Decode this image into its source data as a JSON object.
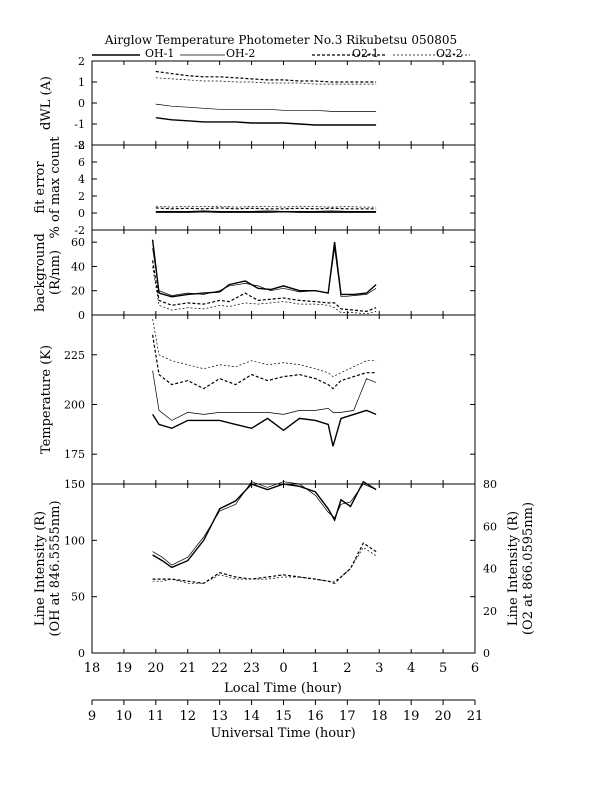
{
  "figure": {
    "title": "Airglow Temperature Photometer No.3   Rikubetsu   050805",
    "legend": [
      "OH-1",
      "OH-2",
      "O2-1",
      "O2-2"
    ],
    "local_time_label": "Local Time (hour)",
    "universal_time_label": "Universal Time (hour)",
    "local_ticks": [
      "18",
      "19",
      "20",
      "21",
      "22",
      "23",
      "0",
      "1",
      "2",
      "3",
      "4",
      "5",
      "6"
    ],
    "ut_ticks": [
      "9",
      "10",
      "11",
      "12",
      "13",
      "14",
      "15",
      "16",
      "17",
      "18",
      "19",
      "20",
      "21"
    ]
  },
  "chart_data": [
    {
      "type": "line",
      "ylabel": "dWL (A)",
      "ylim": [
        -2,
        2
      ],
      "yticks": [
        "2",
        "1",
        "0",
        "-1",
        "-2"
      ],
      "x": [
        20.0,
        20.5,
        21.0,
        21.5,
        22.0,
        22.5,
        23.0,
        23.5,
        0.0,
        0.5,
        1.0,
        1.5,
        2.0,
        2.5,
        2.9
      ],
      "series": [
        {
          "name": "OH-1",
          "values": [
            -0.7,
            -0.8,
            -0.85,
            -0.9,
            -0.9,
            -0.9,
            -0.95,
            -0.95,
            -0.95,
            -1.0,
            -1.05,
            -1.05,
            -1.05,
            -1.05,
            -1.05
          ]
        },
        {
          "name": "OH-2",
          "values": [
            -0.05,
            -0.15,
            -0.2,
            -0.25,
            -0.3,
            -0.3,
            -0.3,
            -0.3,
            -0.35,
            -0.35,
            -0.35,
            -0.4,
            -0.4,
            -0.4,
            -0.4
          ]
        },
        {
          "name": "O2-1",
          "values": [
            1.5,
            1.4,
            1.3,
            1.25,
            1.25,
            1.2,
            1.15,
            1.1,
            1.1,
            1.05,
            1.05,
            1.0,
            1.0,
            1.0,
            1.0
          ]
        },
        {
          "name": "O2-2",
          "values": [
            1.2,
            1.15,
            1.1,
            1.05,
            1.05,
            1.0,
            1.0,
            0.95,
            0.95,
            0.95,
            0.9,
            0.9,
            0.9,
            0.9,
            0.9
          ]
        }
      ]
    },
    {
      "type": "line",
      "ylabel": "fit error",
      "ylabel2": "% of max count",
      "ylim": [
        -2,
        8
      ],
      "yticks": [
        "8",
        "6",
        "4",
        "2",
        "0",
        "-2"
      ],
      "x": [
        20.0,
        20.5,
        21.0,
        21.5,
        22.0,
        22.5,
        23.0,
        23.5,
        0.0,
        0.5,
        1.0,
        1.5,
        2.0,
        2.5,
        2.9
      ],
      "series": [
        {
          "name": "OH-1",
          "values": [
            0.1,
            0.1,
            0.1,
            0.15,
            0.1,
            0.1,
            0.1,
            0.1,
            0.15,
            0.1,
            0.1,
            0.1,
            0.1,
            0.1,
            0.1
          ]
        },
        {
          "name": "OH-2",
          "values": [
            0.2,
            0.2,
            0.2,
            0.25,
            0.2,
            0.2,
            0.2,
            0.25,
            0.2,
            0.2,
            0.2,
            0.25,
            0.2,
            0.2,
            0.2
          ]
        },
        {
          "name": "O2-1",
          "values": [
            0.6,
            0.5,
            0.55,
            0.5,
            0.6,
            0.5,
            0.55,
            0.5,
            0.5,
            0.55,
            0.5,
            0.55,
            0.5,
            0.5,
            0.5
          ]
        },
        {
          "name": "O2-2",
          "values": [
            0.8,
            0.7,
            0.8,
            0.75,
            0.8,
            0.7,
            0.75,
            0.8,
            0.7,
            0.8,
            0.75,
            0.7,
            0.75,
            0.7,
            0.7
          ]
        }
      ]
    },
    {
      "type": "line",
      "ylabel": "background",
      "ylabel2": "(R/nm)",
      "ylim": [
        0,
        70
      ],
      "yticks": [
        "60",
        "40",
        "20",
        "0"
      ],
      "x": [
        19.9,
        20.1,
        20.5,
        21.0,
        21.5,
        22.0,
        22.3,
        22.8,
        23.2,
        23.6,
        0.0,
        0.5,
        1.0,
        1.4,
        1.6,
        1.8,
        2.2,
        2.6,
        2.9
      ],
      "series": [
        {
          "name": "OH-1",
          "values": [
            62,
            18,
            15,
            17,
            18,
            19,
            25,
            28,
            22,
            21,
            24,
            20,
            20,
            18,
            60,
            17,
            17,
            18,
            25
          ]
        },
        {
          "name": "OH-2",
          "values": [
            55,
            20,
            16,
            18,
            17,
            20,
            24,
            26,
            24,
            20,
            22,
            19,
            20,
            18,
            55,
            15,
            16,
            17,
            22
          ]
        },
        {
          "name": "O2-1",
          "values": [
            45,
            12,
            8,
            10,
            9,
            12,
            11,
            18,
            12,
            13,
            14,
            12,
            11,
            10,
            10,
            5,
            4,
            3,
            6
          ]
        },
        {
          "name": "O2-2",
          "values": [
            40,
            8,
            4,
            6,
            5,
            8,
            7,
            10,
            9,
            10,
            11,
            9,
            9,
            8,
            6,
            2,
            2,
            1,
            3
          ]
        }
      ]
    },
    {
      "type": "line",
      "ylabel": "Temperature (K)",
      "ylim": [
        160,
        245
      ],
      "yticks": [
        "225",
        "200",
        "175"
      ],
      "x": [
        19.9,
        20.1,
        20.5,
        21.0,
        21.5,
        22.0,
        22.5,
        23.0,
        23.5,
        0.0,
        0.5,
        1.0,
        1.4,
        1.55,
        1.8,
        2.2,
        2.6,
        2.9
      ],
      "series": [
        {
          "name": "OH-1",
          "values": [
            195,
            190,
            188,
            192,
            192,
            192,
            190,
            188,
            193,
            187,
            193,
            192,
            190,
            179,
            193,
            195,
            197,
            195
          ]
        },
        {
          "name": "OH-2",
          "values": [
            217,
            197,
            192,
            196,
            195,
            196,
            196,
            196,
            196,
            195,
            197,
            197,
            198,
            196,
            196,
            197,
            213,
            211
          ]
        },
        {
          "name": "O2-1",
          "values": [
            235,
            215,
            210,
            212,
            208,
            213,
            210,
            215,
            212,
            214,
            215,
            213,
            210,
            208,
            212,
            214,
            216,
            216
          ]
        },
        {
          "name": "O2-2",
          "values": [
            243,
            225,
            222,
            220,
            218,
            220,
            219,
            222,
            220,
            221,
            220,
            218,
            216,
            214,
            216,
            219,
            222,
            222
          ]
        }
      ]
    },
    {
      "type": "line",
      "ylabel": "Line Intensity (R)",
      "ylabel2": "(OH at 846.5555nm)",
      "y2label": "Line Intensity (R)",
      "y2label2": "(O2 at 866.0595nm)",
      "ylim": [
        0,
        150
      ],
      "yticks": [
        "150",
        "100",
        "50",
        "0"
      ],
      "y2lim": [
        0,
        80
      ],
      "y2ticks": [
        "80",
        "60",
        "40",
        "20",
        "0"
      ],
      "x": [
        19.9,
        20.2,
        20.5,
        21.0,
        21.5,
        22.0,
        22.5,
        23.0,
        23.5,
        0.0,
        0.5,
        1.0,
        1.4,
        1.6,
        1.8,
        2.1,
        2.5,
        2.9
      ],
      "series": [
        {
          "name": "OH-1",
          "values": [
            87,
            82,
            76,
            82,
            100,
            128,
            135,
            150,
            145,
            150,
            148,
            143,
            128,
            118,
            136,
            130,
            152,
            145
          ]
        },
        {
          "name": "OH-2",
          "values": [
            90,
            85,
            78,
            85,
            103,
            126,
            132,
            152,
            147,
            152,
            150,
            140,
            125,
            120,
            132,
            134,
            150,
            145
          ]
        },
        {
          "name": "O2-1",
          "values": [
            35,
            35,
            35,
            34,
            33,
            38,
            36,
            35,
            36,
            37,
            36,
            35,
            34,
            33,
            36,
            40,
            52,
            48
          ]
        },
        {
          "name": "O2-2",
          "values": [
            34,
            34,
            35,
            33,
            33,
            37,
            35,
            35,
            35,
            36,
            36,
            35,
            34,
            34,
            36,
            40,
            50,
            46
          ]
        }
      ]
    }
  ]
}
